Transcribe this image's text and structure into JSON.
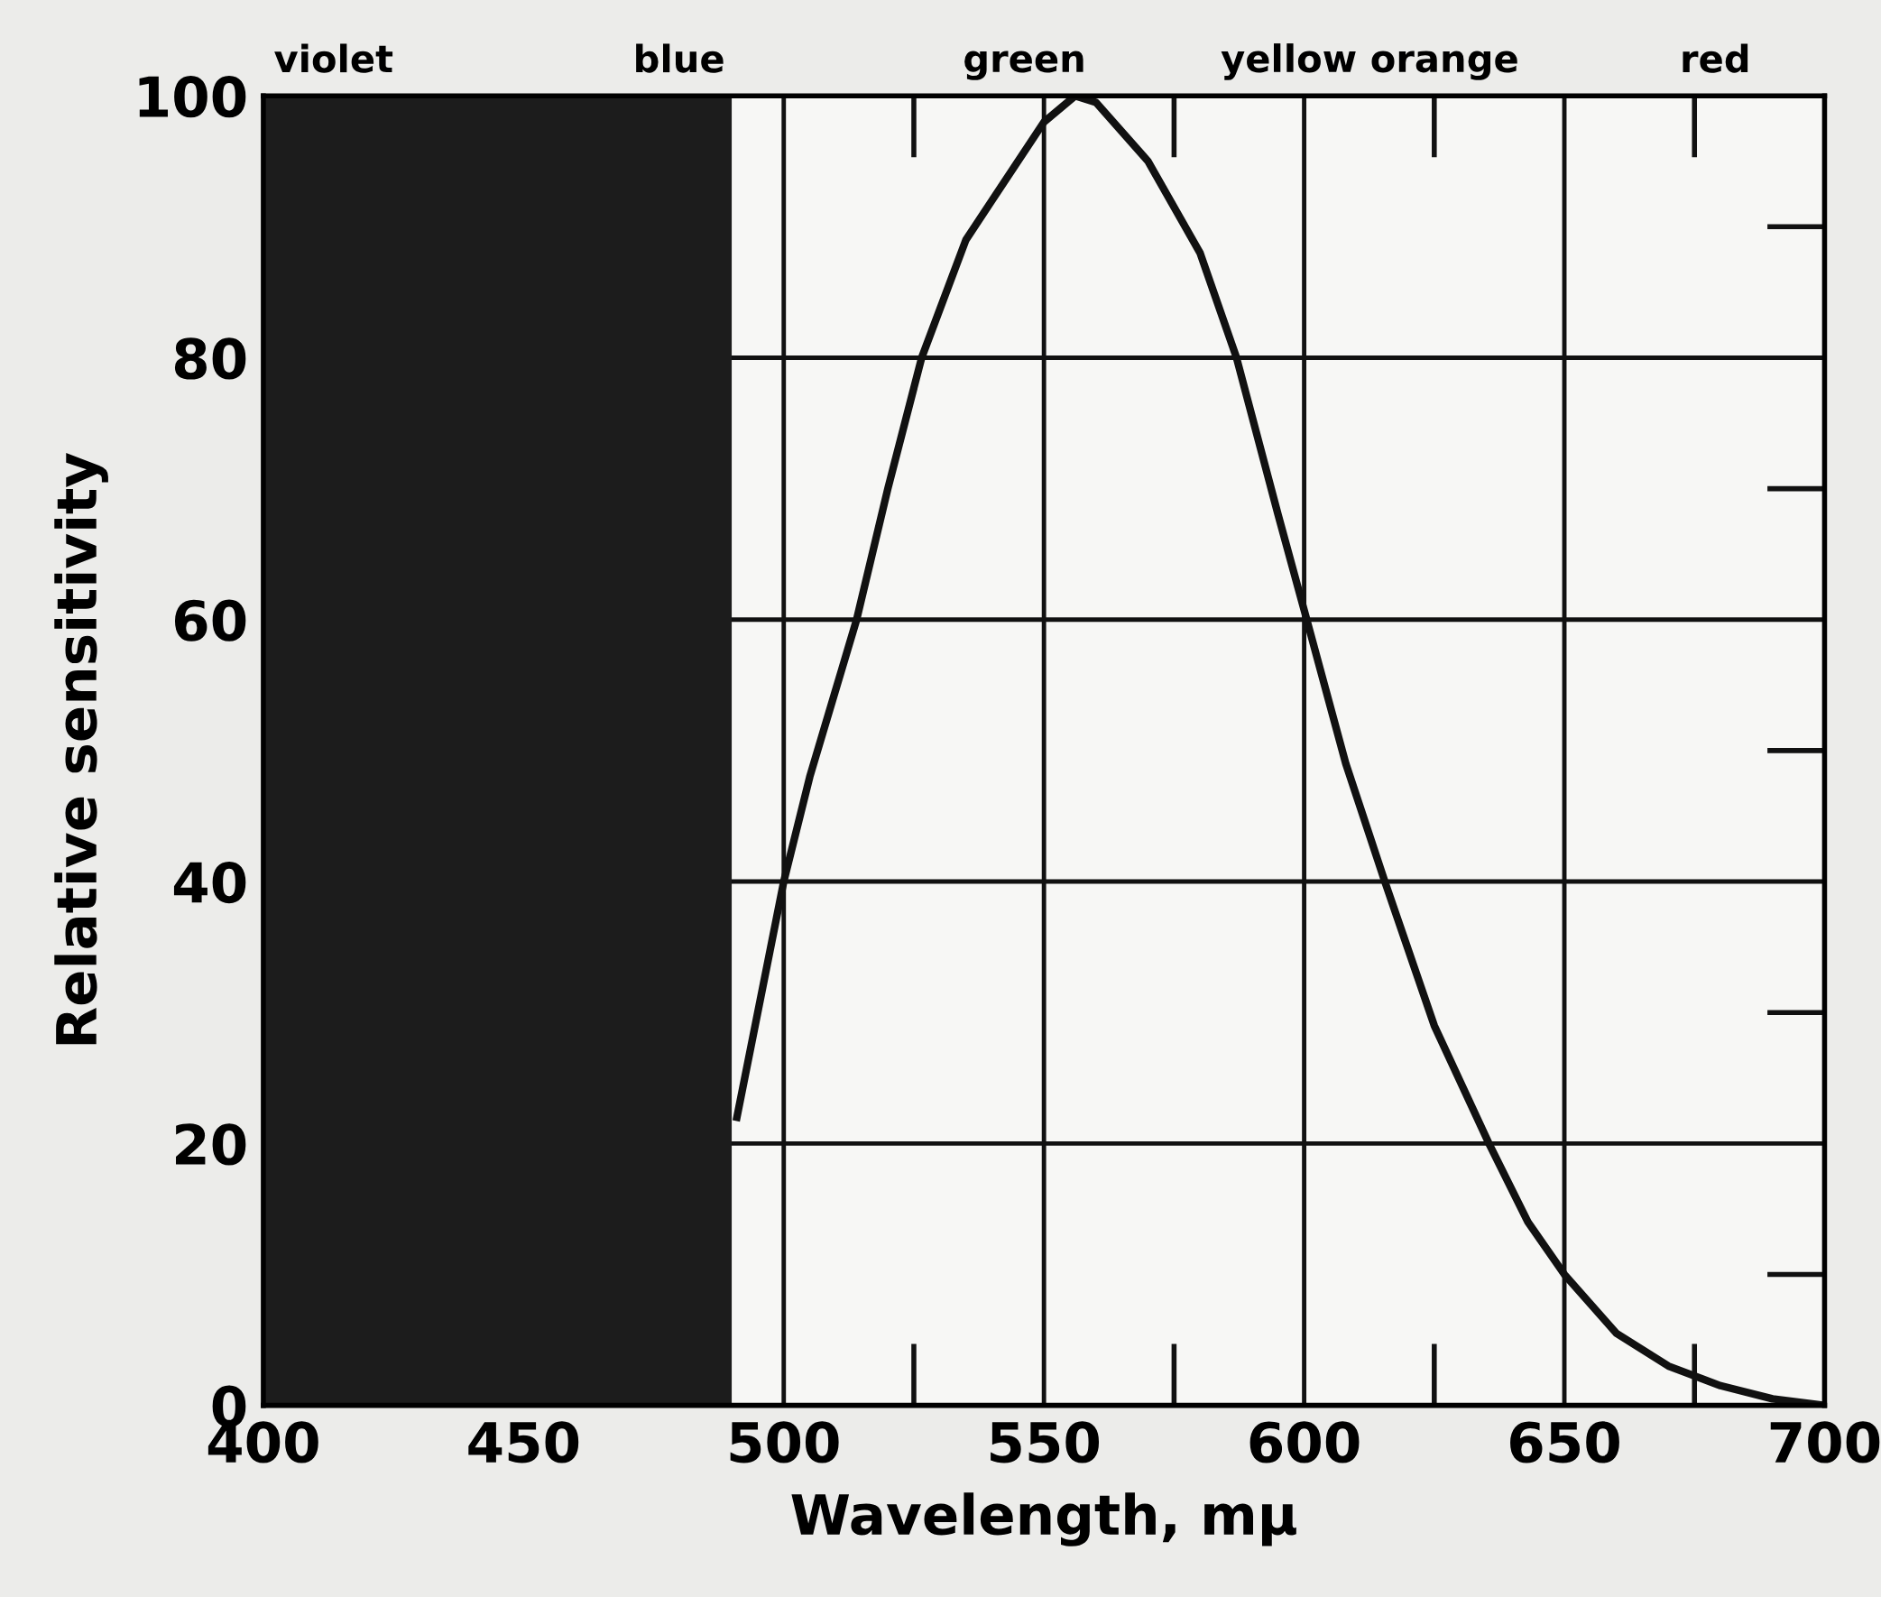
{
  "chart_data": {
    "type": "line",
    "xlabel": "Wavelength, mμ",
    "ylabel": "Relative sensitivity",
    "series": [
      {
        "color": "#111111",
        "x": [
          491,
          500,
          505,
          511,
          514,
          520,
          526.5,
          535,
          540,
          550,
          556,
          560,
          570,
          580,
          587,
          595,
          600.5,
          608,
          615.5,
          625,
          635.5,
          643,
          650,
          660,
          670,
          680,
          690,
          700
        ],
        "values": [
          22,
          40,
          48,
          56,
          60,
          70,
          80,
          89,
          92,
          98,
          100,
          99.5,
          95,
          88,
          80,
          68,
          60,
          49,
          40,
          29,
          20,
          14,
          10,
          5.5,
          3,
          1.5,
          0.5,
          0
        ]
      }
    ],
    "xlim": [
      400,
      700
    ],
    "xticks": [
      400,
      450,
      500,
      550,
      600,
      650,
      700
    ],
    "ylim": [
      0,
      100
    ],
    "yticks": [
      0,
      20,
      40,
      60,
      80,
      100
    ],
    "grid": true,
    "marker": "none",
    "line_style": "solid",
    "bands": [
      {
        "axis": "x",
        "from": 400,
        "to": 490,
        "color": "#1c1c1c"
      }
    ],
    "annotations": [
      "violet",
      "blue",
      "green",
      "yellow orange",
      "red"
    ]
  }
}
